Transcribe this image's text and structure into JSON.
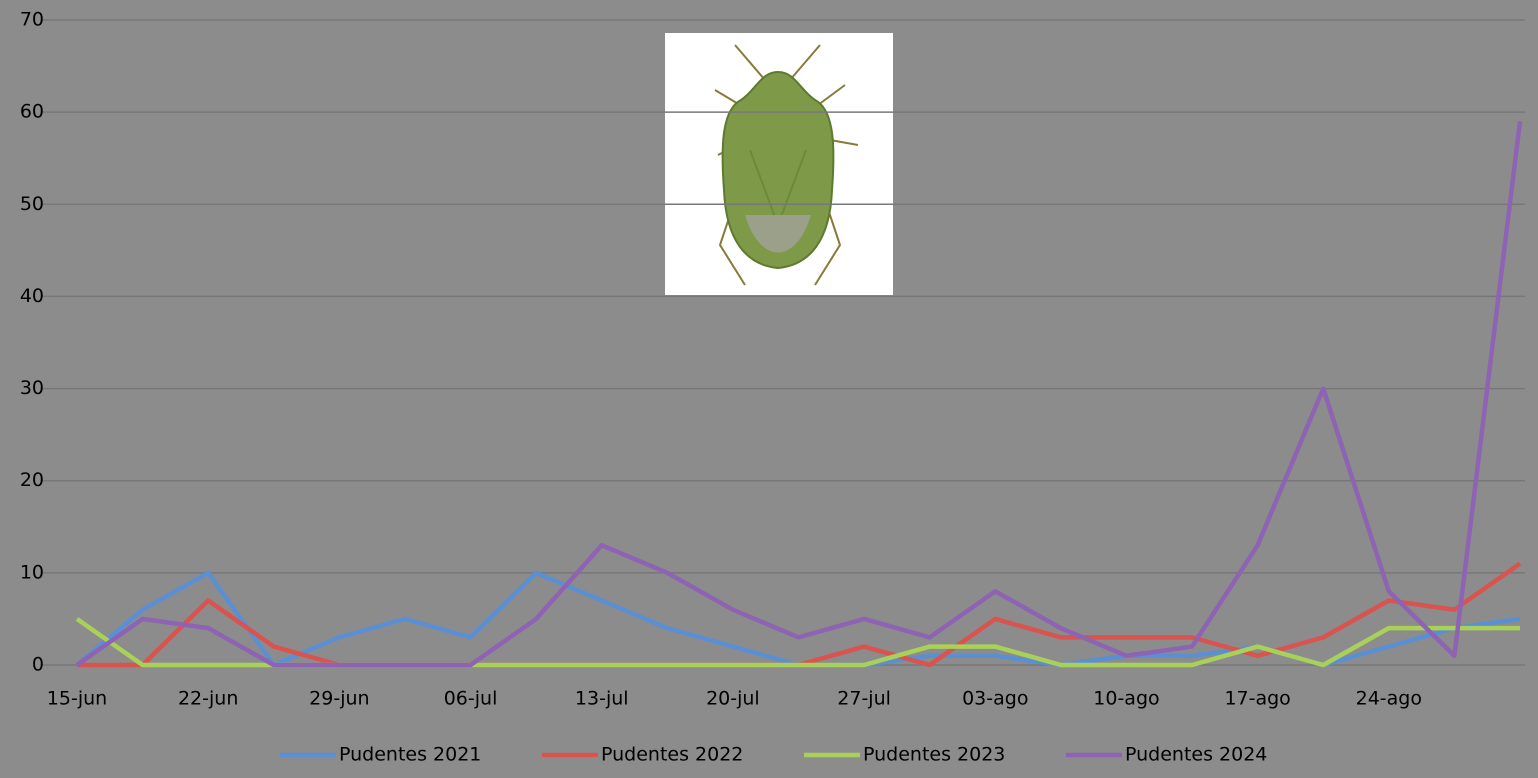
{
  "chart_data": {
    "type": "line",
    "categories": [
      "15-jun",
      null,
      "22-jun",
      null,
      "29-jun",
      null,
      "06-jul",
      null,
      "13-jul",
      null,
      "20-jul",
      null,
      "27-jul",
      null,
      "03-ago",
      null,
      "10-ago",
      null,
      "17-ago",
      null,
      "24-ago",
      null,
      null
    ],
    "series": [
      {
        "name": "Pudentes 2021",
        "color": "#5b8fd4",
        "values": [
          0,
          6,
          10,
          0,
          3,
          5,
          3,
          10,
          7,
          4,
          2,
          0,
          0,
          1,
          1,
          0,
          1,
          1,
          2,
          0,
          2,
          4,
          5
        ]
      },
      {
        "name": "Pudentes 2022",
        "color": "#d9534f",
        "values": [
          0,
          0,
          7,
          2,
          0,
          0,
          0,
          0,
          0,
          0,
          0,
          0,
          2,
          0,
          5,
          3,
          3,
          3,
          1,
          3,
          7,
          6,
          11
        ]
      },
      {
        "name": "Pudentes 2023",
        "color": "#a9d15a",
        "values": [
          5,
          0,
          0,
          0,
          0,
          0,
          0,
          0,
          0,
          0,
          0,
          0,
          0,
          2,
          2,
          0,
          0,
          0,
          2,
          0,
          4,
          4,
          4
        ]
      },
      {
        "name": "Pudentes 2024",
        "color": "#8e63b3",
        "values": [
          0,
          5,
          4,
          0,
          0,
          0,
          0,
          5,
          13,
          10,
          6,
          3,
          5,
          3,
          8,
          4,
          1,
          2,
          13,
          30,
          8,
          1,
          59
        ]
      }
    ],
    "ylim": [
      0,
      70
    ],
    "yticks": [
      0,
      10,
      20,
      30,
      40,
      50,
      60,
      70
    ],
    "grid": true,
    "legend": "bottom"
  }
}
